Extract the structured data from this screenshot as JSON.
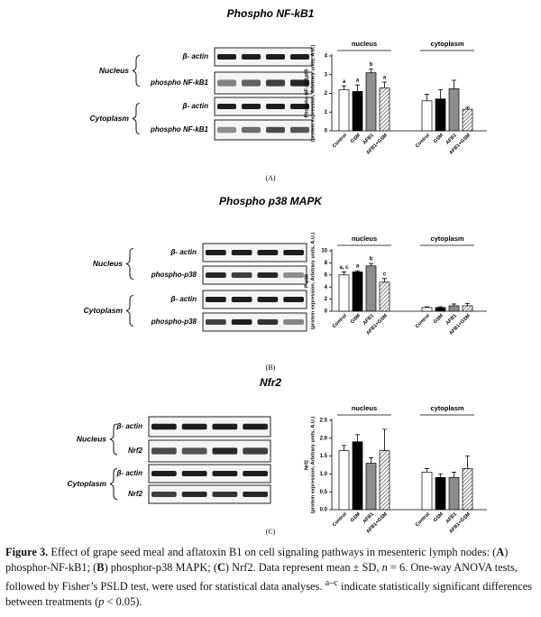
{
  "chart_data": [
    {
      "type": "bar",
      "title": "Phospho NF-kB1",
      "panel": "(A)",
      "blot": {
        "compartments": [
          "Nucleus",
          "Cytoplasm"
        ],
        "rows": [
          "β- actin",
          "phospho NF-kB1"
        ]
      },
      "y_label": [
        "Phospho-NF-kB1p65",
        "(protein expression, Arbitrary units, A.U.)"
      ],
      "categories": [
        "nucleus",
        "cytoplasm"
      ],
      "series": [
        {
          "name": "Control",
          "color": "#ffffff",
          "values": [
            2.2,
            1.6
          ],
          "errors": [
            0.2,
            0.35
          ]
        },
        {
          "name": "GSM",
          "color": "#000000",
          "values": [
            2.1,
            1.7
          ],
          "errors": [
            0.35,
            0.5
          ]
        },
        {
          "name": "AFB1",
          "color": "#8c8c8c",
          "values": [
            3.1,
            2.25
          ],
          "errors": [
            0.2,
            0.45
          ]
        },
        {
          "name": "AFB1+GSM",
          "color": "#ffffff",
          "pattern": "hatch",
          "values": [
            2.3,
            1.15
          ],
          "errors": [
            0.3,
            0.1
          ]
        }
      ],
      "significance": [
        "a",
        "a",
        "b",
        "a"
      ],
      "ylim": [
        0,
        4
      ],
      "yticks": [
        0,
        1,
        2,
        3,
        4
      ]
    },
    {
      "type": "bar",
      "title": "Phospho p38 MAPK",
      "panel": "(B)",
      "blot": {
        "compartments": [
          "Nucleus",
          "Cytoplasm"
        ],
        "rows": [
          "β- actin",
          "phospho-p38"
        ]
      },
      "y_label": [
        "P-p38",
        "(protein expression, Arbitrary units, A.U.)"
      ],
      "categories": [
        "nucleus",
        "cytoplasm"
      ],
      "series": [
        {
          "name": "Control",
          "color": "#ffffff",
          "values": [
            6.0,
            0.6
          ],
          "errors": [
            0.5,
            0.15
          ]
        },
        {
          "name": "GSM",
          "color": "#000000",
          "values": [
            6.5,
            0.6
          ],
          "errors": [
            0.2,
            0.15
          ]
        },
        {
          "name": "AFB1",
          "color": "#8c8c8c",
          "values": [
            7.5,
            0.9
          ],
          "errors": [
            0.4,
            0.3
          ]
        },
        {
          "name": "AFB1+GSM",
          "color": "#ffffff",
          "pattern": "hatch",
          "values": [
            4.8,
            0.9
          ],
          "errors": [
            0.6,
            0.4
          ]
        }
      ],
      "significance": [
        "a, c",
        "a",
        "b",
        "c"
      ],
      "ylim": [
        0,
        10
      ],
      "yticks": [
        0,
        2,
        4,
        6,
        8,
        10
      ]
    },
    {
      "type": "bar",
      "title": "Nfr2",
      "panel": "(C)",
      "blot": {
        "compartments": [
          "Nucleus",
          "Cytoplasm"
        ],
        "rows": [
          "β- actin",
          "Nrf2"
        ]
      },
      "y_label": [
        "Nrf2",
        "(protein expression, Arbitrary units, A.U.)"
      ],
      "categories": [
        "nucleus",
        "cytoplasm"
      ],
      "series": [
        {
          "name": "Control",
          "color": "#ffffff",
          "values": [
            1.65,
            1.05
          ],
          "errors": [
            0.15,
            0.1
          ]
        },
        {
          "name": "GSM",
          "color": "#000000",
          "values": [
            1.9,
            0.9
          ],
          "errors": [
            0.2,
            0.1
          ]
        },
        {
          "name": "AFB1",
          "color": "#8c8c8c",
          "values": [
            1.3,
            0.9
          ],
          "errors": [
            0.15,
            0.15
          ]
        },
        {
          "name": "AFB1+GSM",
          "color": "#ffffff",
          "pattern": "hatch",
          "values": [
            1.65,
            1.15
          ],
          "errors": [
            0.6,
            0.35
          ]
        }
      ],
      "ylim": [
        0,
        2.5
      ],
      "yticks": [
        {
          "value": 0,
          "label": "0.0"
        },
        0.5,
        {
          "value": 1,
          "label": "1.0"
        },
        1.5,
        {
          "value": 2,
          "label": "2.0"
        },
        2.5
      ]
    }
  ],
  "caption": [
    "Figure 3.",
    " Effect of grape seed meal and aflatoxin B1 on cell signaling pathways in mesenteric lymph nodes: (",
    "A",
    ") phosphor-NF-kB1; (",
    "B",
    ") phosphor-p38 MAPK; (",
    "C",
    ") Nrf2. Data represent mean ± SD, ",
    "n",
    " = 6. One-way ANOVA tests, followed by Fisher’s PSLD test, were used for statistical data analyses. ",
    "a–c",
    " indicate statistically significant differences between treatments (",
    "p",
    " < 0.05)."
  ]
}
